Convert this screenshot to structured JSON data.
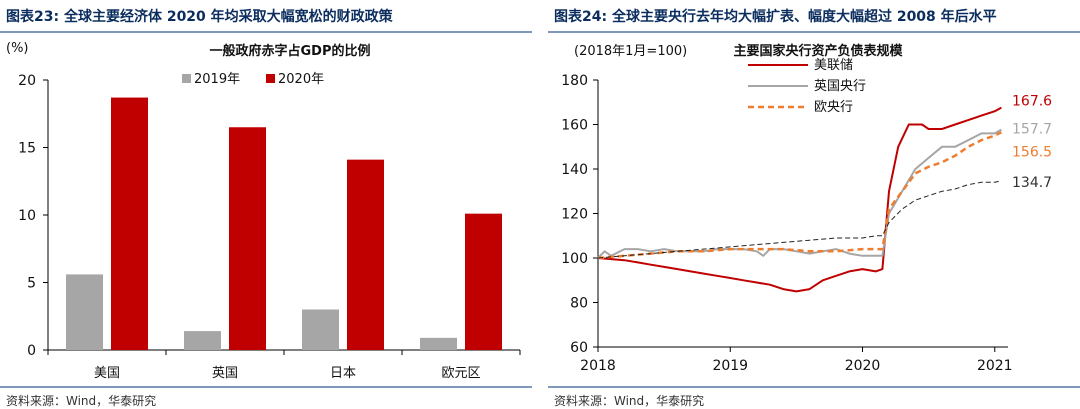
{
  "figures": [
    {
      "title": "图表23:  全球主要经济体 2020 年均采取大幅宽松的财政政策",
      "source": "资料来源：Wind，华泰研究"
    },
    {
      "title": "图表24:  全球主要央行去年均大幅扩表、幅度大幅超过 2008 年后水平",
      "source": "资料来源：Wind，华泰研究"
    }
  ],
  "chart_data": [
    {
      "type": "bar",
      "title": "一般政府赤字占GDP的比例",
      "ylabel": "(%)",
      "categories": [
        "美国",
        "英国",
        "日本",
        "欧元区"
      ],
      "ylim": [
        0,
        20
      ],
      "yticks": [
        0,
        5,
        10,
        15,
        20
      ],
      "legend": "top",
      "grid": false,
      "series": [
        {
          "name": "2019年",
          "color": "#a6a6a6",
          "values": [
            5.6,
            1.4,
            3.0,
            0.9
          ]
        },
        {
          "name": "2020年",
          "color": "#c00000",
          "values": [
            18.7,
            16.5,
            14.1,
            10.1
          ]
        }
      ]
    },
    {
      "type": "line",
      "title": "主要国家央行资产负债表规模",
      "ylabel": "(2018年1月=100)",
      "xlim": [
        2018,
        2021.1
      ],
      "xticks": [
        2018,
        2019,
        2020,
        2021
      ],
      "ylim": [
        60,
        180
      ],
      "yticks": [
        60,
        80,
        100,
        120,
        140,
        160,
        180
      ],
      "legend": "top-left",
      "grid": false,
      "series": [
        {
          "name": "美联储",
          "color": "#c00000",
          "style": "solid",
          "end_label": "167.6",
          "x": [
            2018,
            2018.1,
            2018.2,
            2018.3,
            2018.4,
            2018.5,
            2018.6,
            2018.7,
            2018.8,
            2018.9,
            2019,
            2019.1,
            2019.2,
            2019.3,
            2019.4,
            2019.5,
            2019.6,
            2019.7,
            2019.8,
            2019.9,
            2020,
            2020.1,
            2020.15,
            2020.2,
            2020.27,
            2020.35,
            2020.45,
            2020.5,
            2020.6,
            2020.7,
            2020.8,
            2020.9,
            2021,
            2021.05
          ],
          "y": [
            100,
            99.5,
            99,
            98,
            97,
            96,
            95,
            94,
            93,
            92,
            91,
            90,
            89,
            88,
            86,
            85,
            86,
            90,
            92,
            94,
            95,
            94,
            95,
            130,
            150,
            160,
            160,
            158,
            158,
            160,
            162,
            164,
            166,
            167.6
          ]
        },
        {
          "name": "英国央行",
          "color": "#a6a6a6",
          "style": "solid",
          "end_label": "157.7",
          "x": [
            2018,
            2018.05,
            2018.1,
            2018.2,
            2018.3,
            2018.4,
            2018.5,
            2018.6,
            2018.7,
            2018.8,
            2018.9,
            2019,
            2019.1,
            2019.2,
            2019.25,
            2019.3,
            2019.4,
            2019.5,
            2019.6,
            2019.7,
            2019.8,
            2019.9,
            2020,
            2020.1,
            2020.15,
            2020.2,
            2020.3,
            2020.4,
            2020.5,
            2020.6,
            2020.7,
            2020.8,
            2020.9,
            2021,
            2021.05
          ],
          "y": [
            100,
            103,
            101,
            104,
            104,
            103,
            104,
            103,
            103,
            103,
            104,
            104,
            104,
            103,
            101,
            104,
            104,
            103,
            102,
            103,
            104,
            102,
            101,
            101,
            101,
            120,
            130,
            140,
            145,
            150,
            150,
            153,
            156,
            156,
            157.7
          ]
        },
        {
          "name": "欧央行",
          "color": "#ed7d31",
          "style": "dashed",
          "end_label": "156.5",
          "x": [
            2018,
            2018.2,
            2018.4,
            2018.6,
            2018.8,
            2019,
            2019.2,
            2019.4,
            2019.6,
            2019.8,
            2020,
            2020.1,
            2020.15,
            2020.2,
            2020.3,
            2020.4,
            2020.5,
            2020.6,
            2020.7,
            2020.8,
            2020.9,
            2021,
            2021.05
          ],
          "y": [
            100,
            101,
            102,
            103,
            103,
            104,
            104,
            104,
            103,
            103,
            104,
            104,
            104,
            122,
            130,
            138,
            141,
            143,
            146,
            150,
            153,
            155,
            156.5
          ]
        },
        {
          "name": "",
          "color": "#222222",
          "style": "dashed-thin",
          "end_label": "134.7",
          "x": [
            2018,
            2018.2,
            2018.4,
            2018.6,
            2018.8,
            2019,
            2019.2,
            2019.4,
            2019.6,
            2019.8,
            2020,
            2020.1,
            2020.15,
            2020.2,
            2020.3,
            2020.4,
            2020.5,
            2020.6,
            2020.7,
            2020.8,
            2020.9,
            2021,
            2021.05
          ],
          "y": [
            100,
            101,
            102,
            103,
            104,
            105,
            106,
            107,
            108,
            109,
            109,
            110,
            110,
            116,
            122,
            126,
            128,
            130,
            131,
            133,
            134,
            134,
            134.7
          ]
        }
      ]
    }
  ]
}
